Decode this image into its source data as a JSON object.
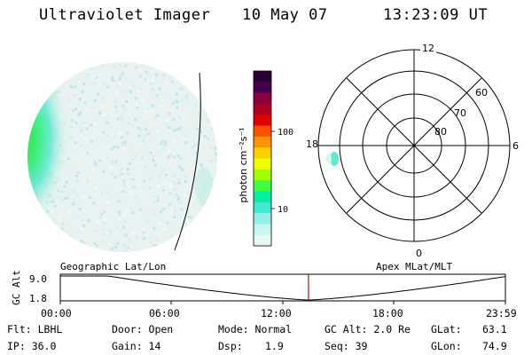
{
  "header": {
    "title": "Ultraviolet Imager",
    "date": "10 May 07",
    "time": "13:23:09 UT"
  },
  "colorbar": {
    "label": "photon cm⁻²s⁻¹",
    "ticks": [
      "100",
      "10"
    ],
    "colors": [
      "#2a0030",
      "#4a0050",
      "#8a0040",
      "#b00020",
      "#e00000",
      "#ff5000",
      "#ff9000",
      "#ffd000",
      "#f0ff00",
      "#a0ff00",
      "#40ff40",
      "#00f0a0",
      "#40e8d0",
      "#90f0e8",
      "#c8f6f0",
      "#e6f8f6"
    ]
  },
  "polar_plot": {
    "mlt_labels": {
      "top": "12",
      "right": "6",
      "bottom": "0",
      "left": "18"
    },
    "lat_labels": [
      "60",
      "70",
      "80"
    ]
  },
  "altitude_panel": {
    "left_caption": "Geographic Lat/Lon",
    "right_caption": "Apex MLat/MLT",
    "ylabel": "GC Alt",
    "yticks": [
      "9.0",
      "1.8"
    ],
    "xticks": [
      "00:00",
      "06:00",
      "12:00",
      "18:00",
      "23:59"
    ],
    "marker_time": "13:23",
    "marker_color": "#cc0000"
  },
  "footer": {
    "flt": "Flt: LBHL",
    "ip": "IP: 36.0",
    "door": "Door: Open",
    "gain": "Gain: 14",
    "mode": "Mode: Normal",
    "dsp_label": "Dsp:",
    "dsp_value": "1.9",
    "gc_alt": "GC Alt: 2.0 Re",
    "seq": "Seq: 39",
    "glat_label": "GLat:",
    "glat_value": "63.1",
    "glon_label": "GLon:",
    "glon_value": "74.9"
  }
}
